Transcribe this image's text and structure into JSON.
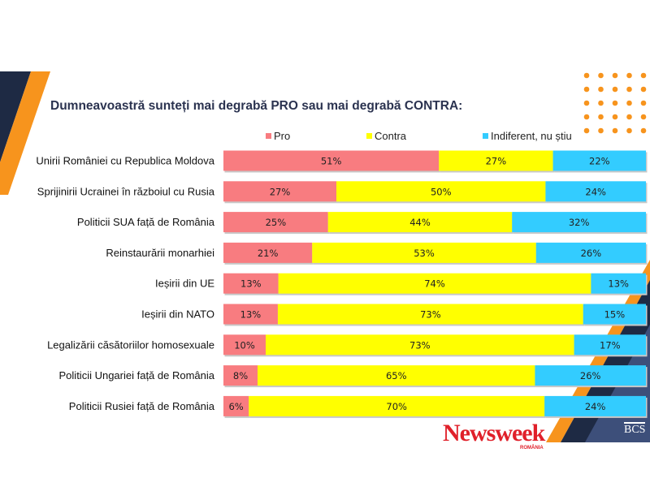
{
  "chart_data": {
    "type": "bar",
    "orientation": "horizontal",
    "stacked": true,
    "title": "Dumneavoastră sunteți mai degrabă PRO sau mai degrabă CONTRA:",
    "categories": [
      "Unirii României cu Republica Moldova",
      "Sprijinirii Ucrainei în războiul cu Rusia",
      "Politicii SUA față de România",
      "Reinstaurării monarhiei",
      "Ieșirii din UE",
      "Ieșirii din NATO",
      "Legalizării căsătoriilor homosexuale",
      "Politicii Ungariei față de România",
      "Politicii Rusiei față de România"
    ],
    "series": [
      {
        "name": "Pro",
        "color": "#f87c80",
        "values": [
          51,
          27,
          25,
          21,
          13,
          13,
          10,
          8,
          6
        ]
      },
      {
        "name": "Contra",
        "color": "#ffff00",
        "values": [
          27,
          50,
          44,
          53,
          74,
          73,
          73,
          65,
          70
        ]
      },
      {
        "name": "Indiferent, nu știu",
        "color": "#33ccff",
        "values": [
          22,
          24,
          32,
          26,
          13,
          15,
          17,
          26,
          24
        ]
      }
    ],
    "value_suffix": "%",
    "legend": "top",
    "grid": false
  },
  "branding": {
    "logo": "Newsweek",
    "logo_sub": "ROMÂNIA",
    "partner": "BCS"
  },
  "colors": {
    "navy": "#1e2a44",
    "orange": "#f7941d",
    "title": "#2b3350"
  }
}
